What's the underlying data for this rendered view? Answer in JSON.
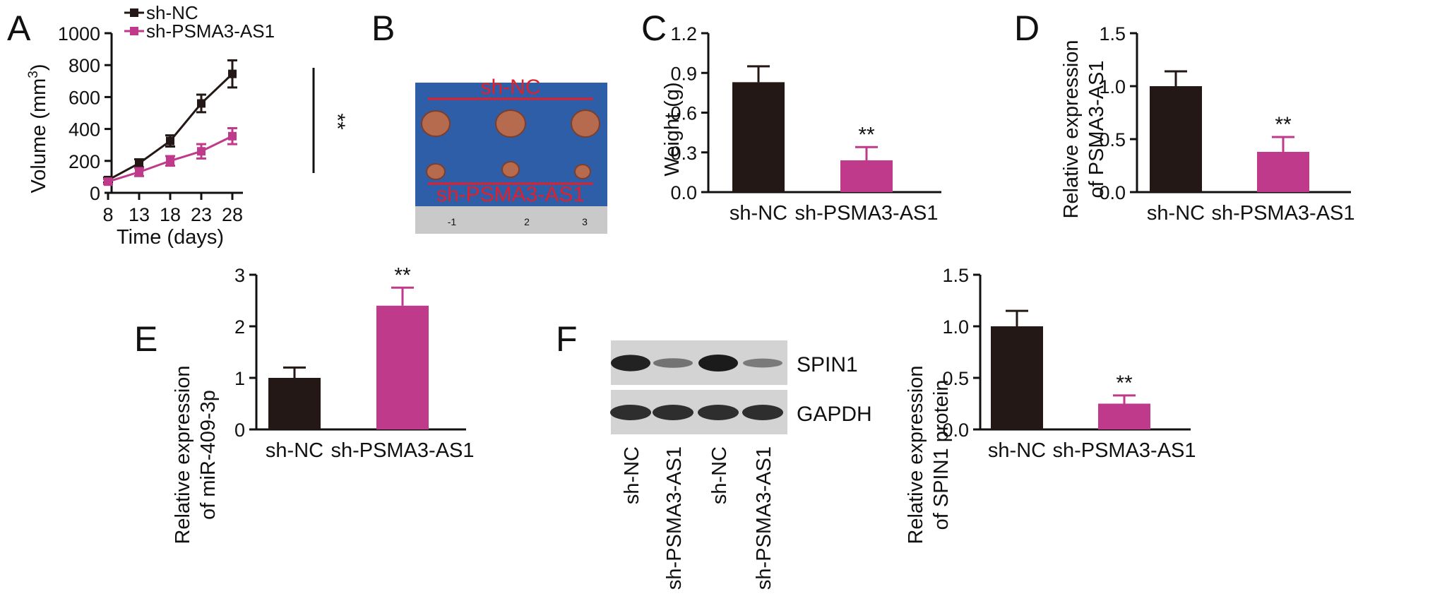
{
  "colors": {
    "nc": "#231815",
    "sh": "#c03a8c",
    "axis": "#111111",
    "photo_bg": "#2e5ea8",
    "tumor": "#b66a4e",
    "label_red": "#e0202a"
  },
  "chart_data": [
    {
      "panel": "A",
      "type": "line",
      "xlabel": "Time (days)",
      "ylabel_main": "Volume (mm",
      "ylabel_sup": "3",
      "ylabel_end": ")",
      "x": [
        8,
        13,
        18,
        23,
        28
      ],
      "xlim": [
        8,
        28
      ],
      "ylim": [
        0,
        1000
      ],
      "yticks": [
        0,
        200,
        400,
        600,
        800,
        1000
      ],
      "series": [
        {
          "name": "sh-NC",
          "values": [
            80,
            185,
            325,
            560,
            745
          ],
          "errors": [
            15,
            25,
            35,
            55,
            85
          ]
        },
        {
          "name": "sh-PSMA3-AS1",
          "values": [
            70,
            130,
            200,
            260,
            355
          ],
          "errors": [
            15,
            25,
            30,
            45,
            50
          ]
        }
      ],
      "annotation": "**"
    },
    {
      "panel": "B",
      "type": "image",
      "labels": [
        "sh-NC",
        "sh-PSMA3-AS1"
      ],
      "ruler_labels": [
        "-1",
        "2",
        "3"
      ]
    },
    {
      "panel": "C",
      "type": "bar",
      "categories": [
        "sh-NC",
        "sh-PSMA3-AS1"
      ],
      "values": [
        0.83,
        0.24
      ],
      "errors": [
        0.12,
        0.1
      ],
      "ylabel": "Weight (g)",
      "ylim": [
        0,
        1.2
      ],
      "yticks": [
        "0.0",
        "0.3",
        "0.6",
        "0.9",
        "1.2"
      ],
      "annotation": "**"
    },
    {
      "panel": "D",
      "type": "bar",
      "categories": [
        "sh-NC",
        "sh-PSMA3-AS1"
      ],
      "values": [
        1.0,
        0.38
      ],
      "errors": [
        0.14,
        0.14
      ],
      "ylabel_line1": "Relative expression",
      "ylabel_line2": "of PSMA3-AS1",
      "ylim": [
        0,
        1.5
      ],
      "yticks": [
        "0.0",
        "0.5",
        "1.0",
        "1.5"
      ],
      "annotation": "**"
    },
    {
      "panel": "E",
      "type": "bar",
      "categories": [
        "sh-NC",
        "sh-PSMA3-AS1"
      ],
      "values": [
        1.0,
        2.4
      ],
      "errors": [
        0.2,
        0.35
      ],
      "ylabel_line1": "Relative expression",
      "ylabel_line2": "of miR-409-3p",
      "ylim": [
        0,
        3
      ],
      "yticks": [
        "0",
        "1",
        "2",
        "3"
      ],
      "annotation": "**"
    },
    {
      "panel": "F",
      "type": "bar",
      "categories": [
        "sh-NC",
        "sh-PSMA3-AS1"
      ],
      "values": [
        1.0,
        0.25
      ],
      "errors": [
        0.15,
        0.08
      ],
      "ylabel_line1": "Relative expression",
      "ylabel_line2": "of SPIN1 protein",
      "ylim": [
        0,
        1.5
      ],
      "yticks": [
        "0.0",
        "0.5",
        "1.0",
        "1.5"
      ],
      "annotation": "**",
      "blot": {
        "rows": [
          "SPIN1",
          "GAPDH"
        ],
        "lanes": [
          "sh-NC",
          "sh-PSMA3-AS1",
          "sh-NC",
          "sh-PSMA3-AS1"
        ],
        "spin1_intensity": [
          0.95,
          0.35,
          1.0,
          0.3
        ],
        "gapdh_intensity": [
          1.0,
          1.0,
          1.0,
          1.0
        ]
      }
    }
  ]
}
